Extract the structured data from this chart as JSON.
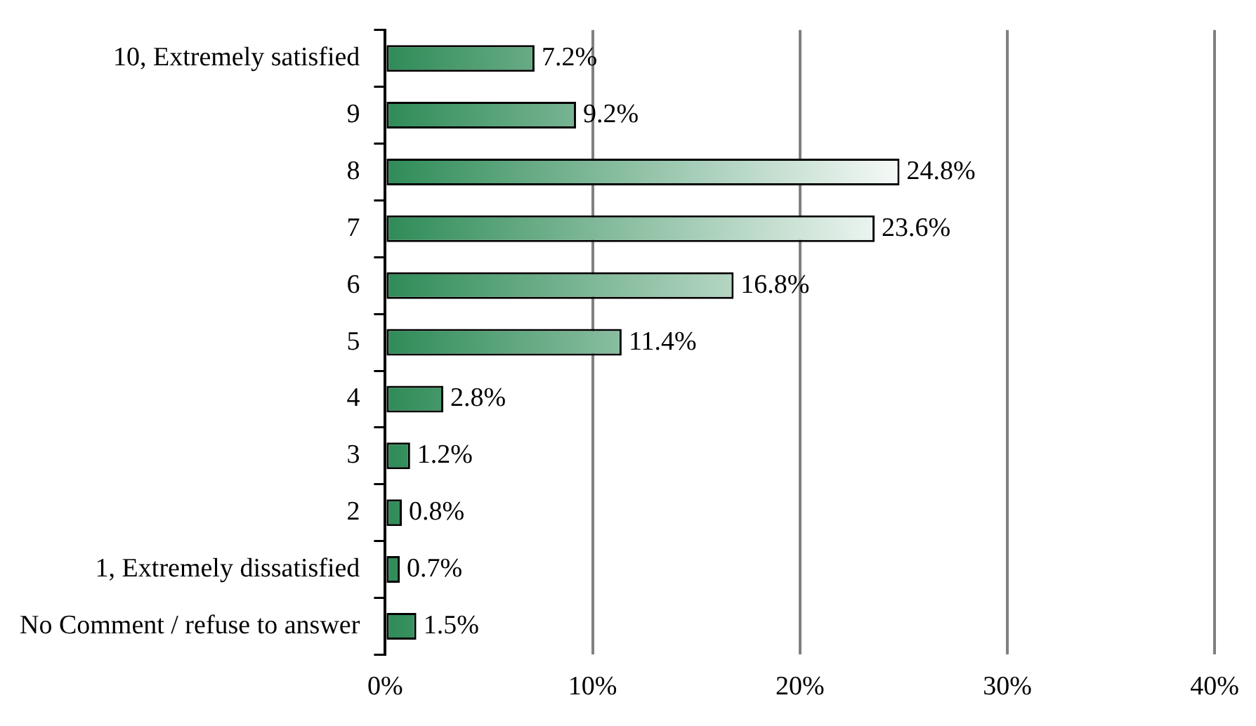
{
  "chart_data": {
    "type": "bar",
    "orientation": "horizontal",
    "categories": [
      "10, Extremely satisfied",
      "9",
      "8",
      "7",
      "6",
      "5",
      "4",
      "3",
      "2",
      "1, Extremely dissatisfied",
      "No Comment / refuse to answer"
    ],
    "values": [
      7.2,
      9.2,
      24.8,
      23.6,
      16.8,
      11.4,
      2.8,
      1.2,
      0.8,
      0.7,
      1.5
    ],
    "value_labels": [
      "7.2%",
      "9.2%",
      "24.8%",
      "23.6%",
      "16.8%",
      "11.4%",
      "2.8%",
      "1.2%",
      "0.8%",
      "0.7%",
      "1.5%"
    ],
    "color": "#2e8b57",
    "xlim": [
      0,
      40
    ],
    "xticks": [
      {
        "value": 0,
        "label": "0%"
      },
      {
        "value": 10,
        "label": "10%"
      },
      {
        "value": 20,
        "label": "20%"
      },
      {
        "value": 30,
        "label": "30%"
      },
      {
        "value": 40,
        "label": "40%"
      }
    ],
    "grid": "x",
    "legend": false
  }
}
